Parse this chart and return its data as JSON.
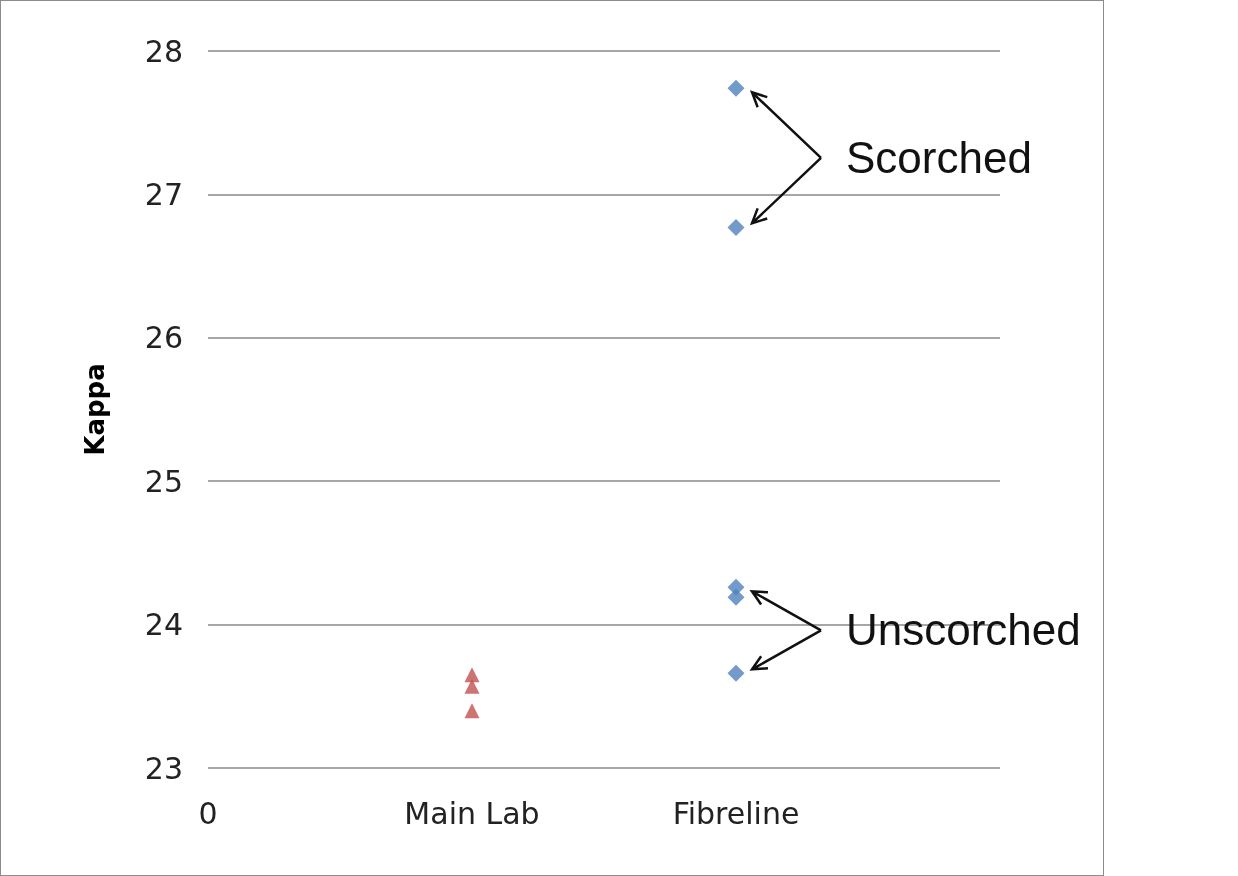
{
  "chart_data": {
    "type": "scatter",
    "ylabel": "Kappa",
    "categories": [
      "0",
      "Main Lab",
      "Fibreline",
      null
    ],
    "ylim": [
      23,
      28
    ],
    "yticks": [
      23,
      24,
      25,
      26,
      27,
      28
    ],
    "grid": "y",
    "series": [
      {
        "color": "#c0504d",
        "marker": "triangle",
        "x": [
          "Main Lab",
          "Main Lab",
          "Main Lab"
        ],
        "values": [
          23.65,
          23.57,
          23.4
        ]
      },
      {
        "color": "#4f81bd",
        "marker": "diamond",
        "x": [
          "Fibreline",
          "Fibreline",
          "Fibreline",
          "Fibreline",
          "Fibreline"
        ],
        "values": [
          27.74,
          26.77,
          24.26,
          24.19,
          23.66
        ]
      }
    ],
    "annotations": [
      "Scorched",
      "Unscorched"
    ]
  }
}
